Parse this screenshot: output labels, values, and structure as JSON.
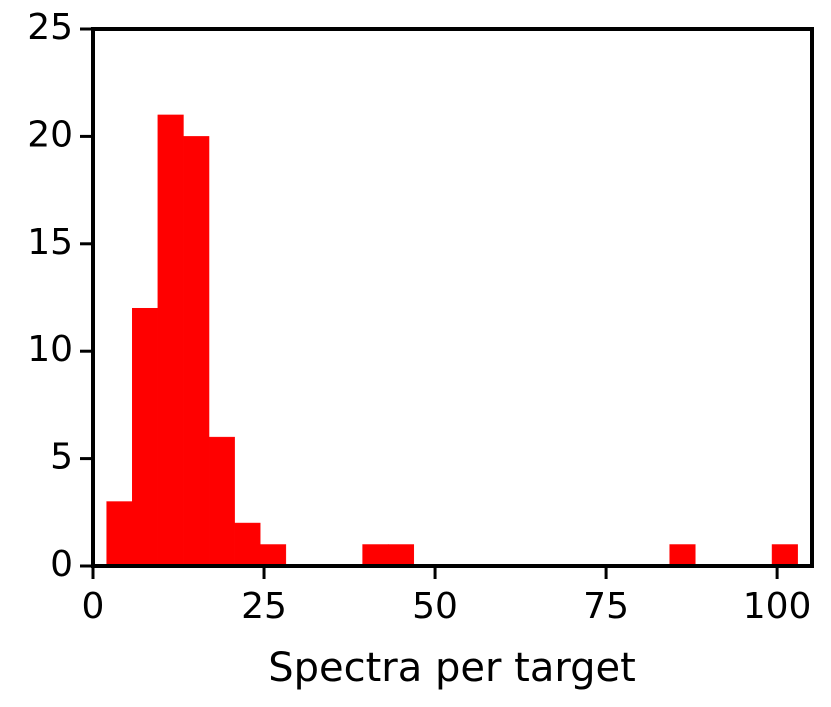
{
  "chart_data": {
    "type": "histogram",
    "x_label": "Spectra per target",
    "color": "#ff0000",
    "bins": [
      2,
      5.74,
      9.48,
      13.22,
      16.96,
      20.7,
      24.44,
      28.19,
      31.93,
      35.67,
      39.41,
      43.15,
      46.89,
      50.63,
      54.37,
      58.11,
      61.85,
      65.59,
      69.33,
      73.07,
      76.81,
      80.56,
      84.3,
      88.04,
      91.78,
      95.52,
      99.26,
      103
    ],
    "values": [
      3,
      12,
      21,
      20,
      6,
      2,
      1,
      0,
      0,
      0,
      1,
      1,
      0,
      0,
      0,
      0,
      0,
      0,
      0,
      0,
      0,
      0,
      1,
      0,
      0,
      0,
      1
    ],
    "xlim": [
      0,
      105.1
    ],
    "xticks": [
      0,
      25,
      50,
      75,
      100
    ],
    "ylim": [
      0,
      25
    ],
    "yticks": [
      0,
      5,
      10,
      15,
      20,
      25
    ]
  }
}
